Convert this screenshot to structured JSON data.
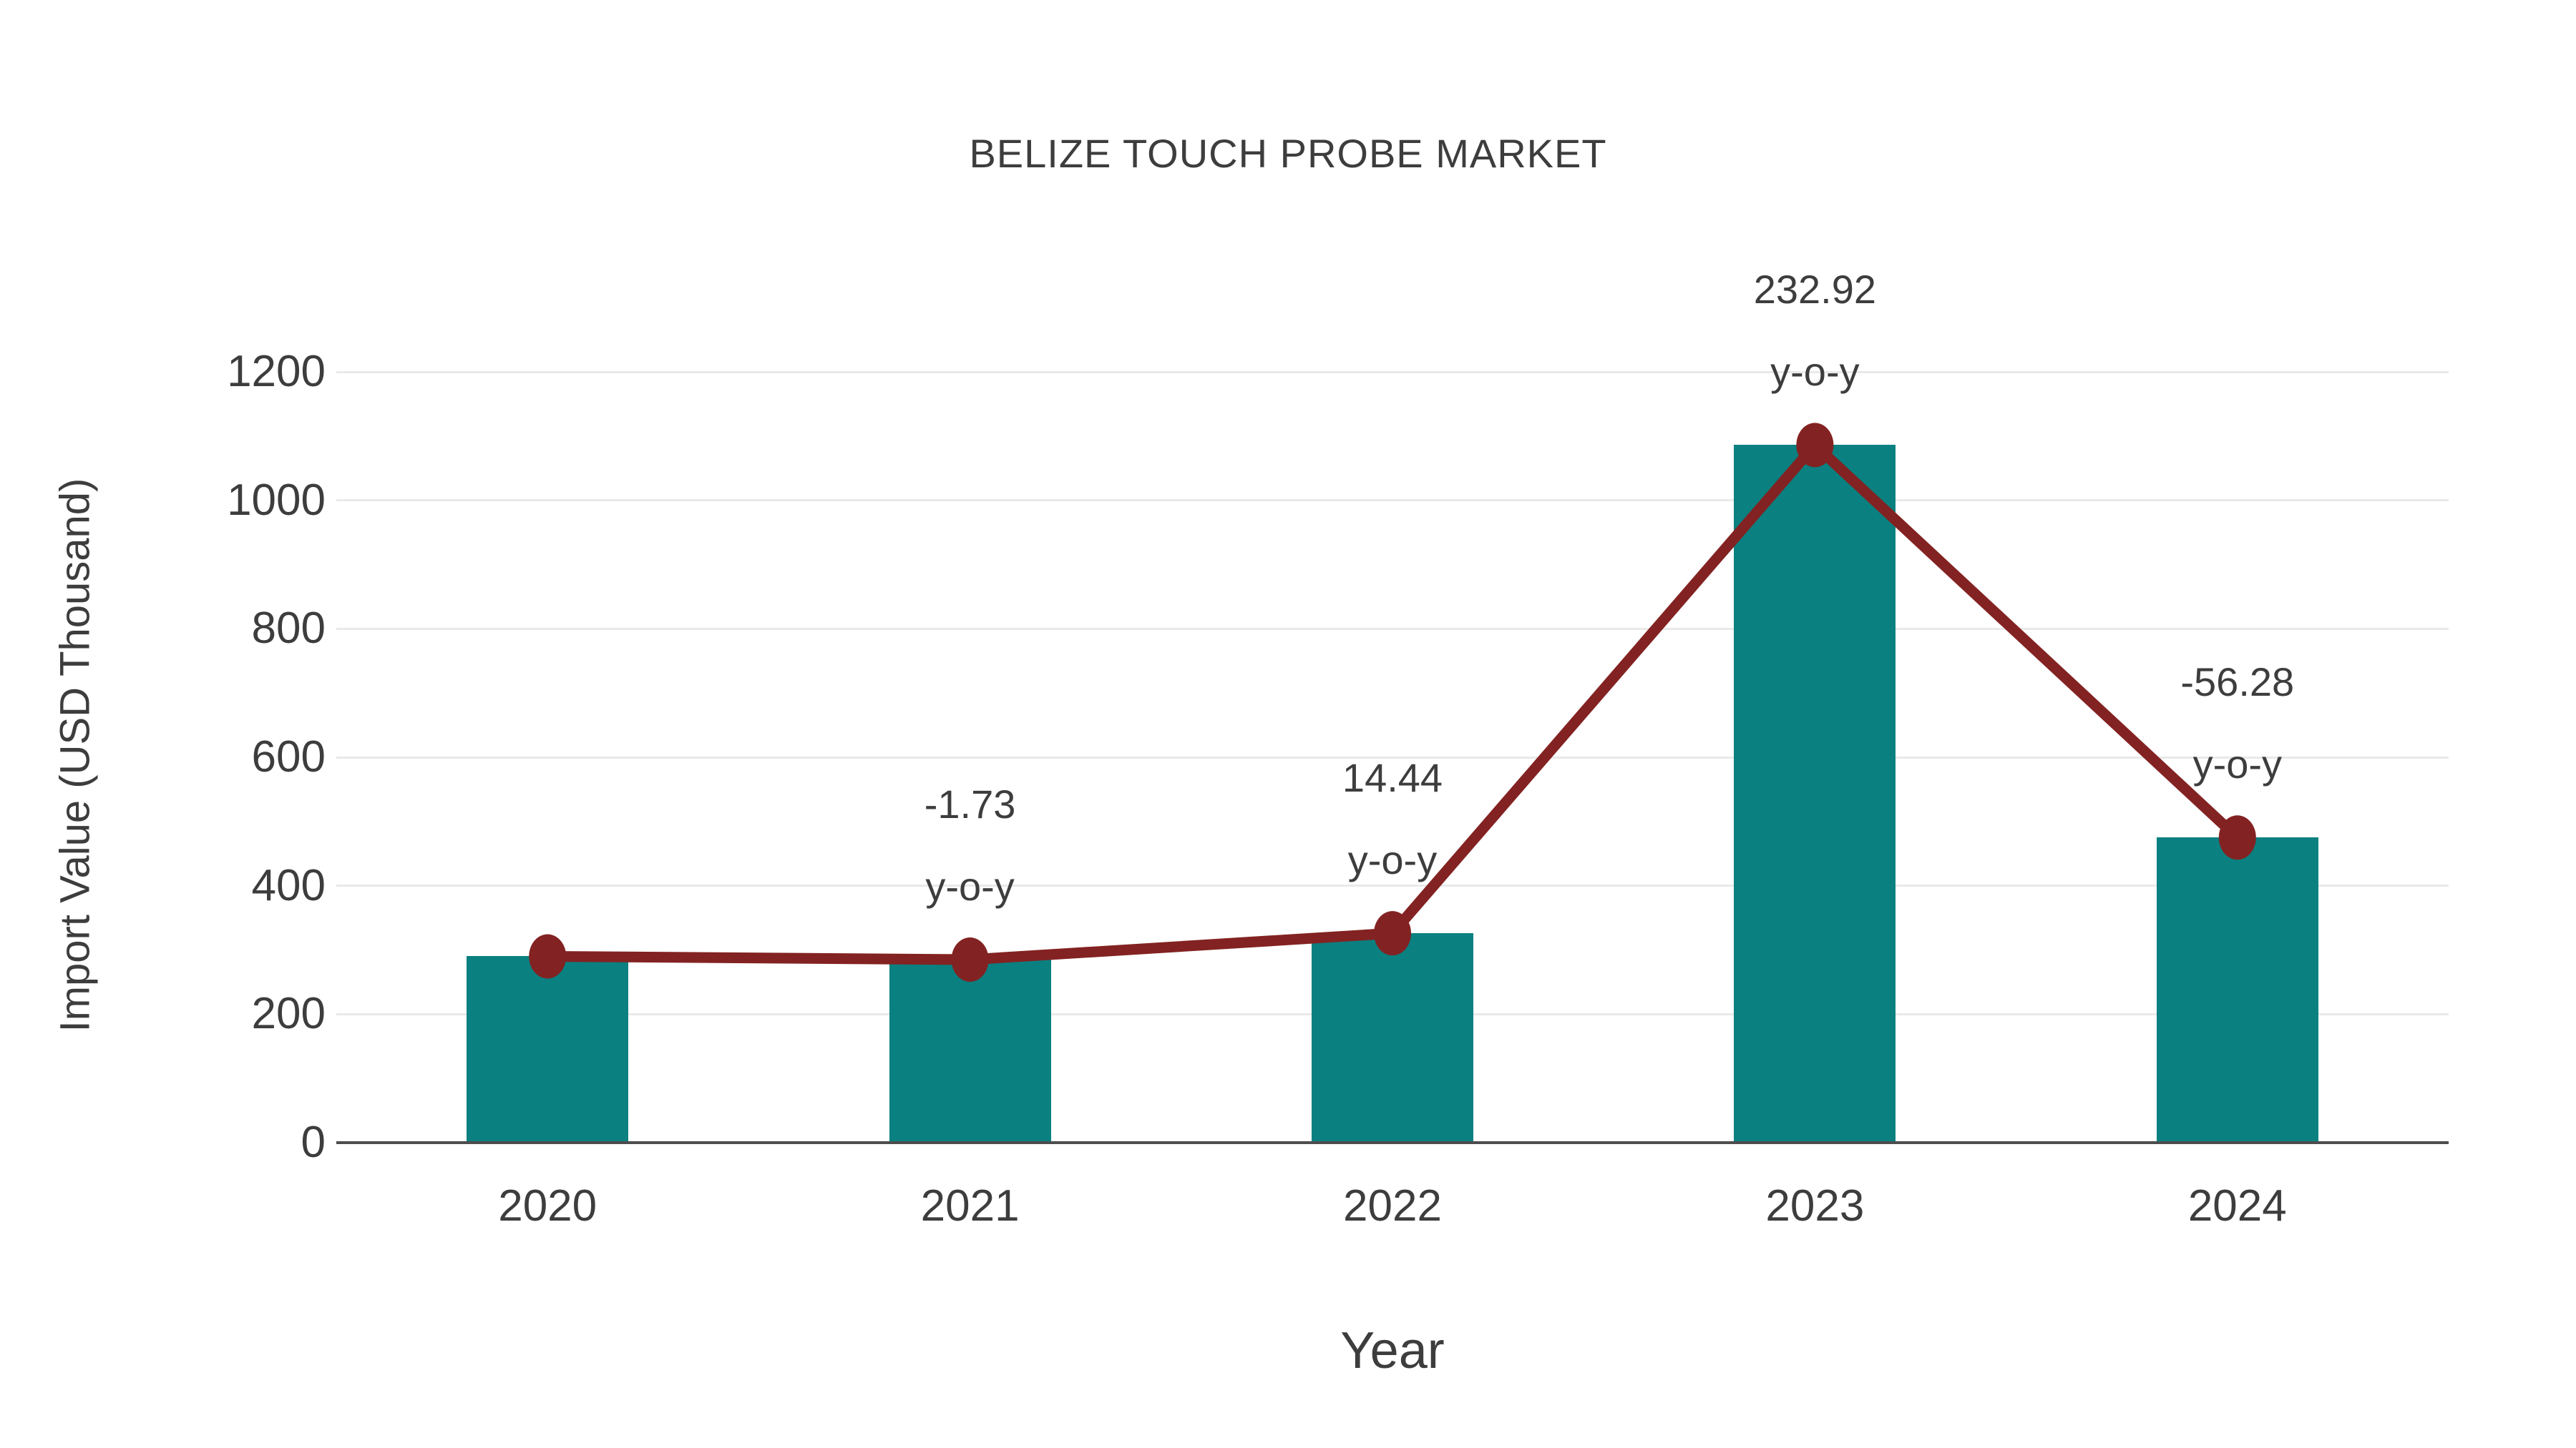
{
  "chart_data": {
    "type": "bar",
    "subtype": "bar-with-line-overlay",
    "title": "BELIZE TOUCH PROBE MARKET",
    "xlabel": "Year",
    "ylabel": "Import Value (USD Thousand)",
    "categories": [
      "2020",
      "2021",
      "2022",
      "2023",
      "2024"
    ],
    "series": [
      {
        "name": "Import Value bars",
        "type": "bar",
        "values": [
          290,
          285,
          326,
          1086,
          475
        ]
      },
      {
        "name": "Import Value trend",
        "type": "line",
        "values": [
          290,
          285,
          326,
          1086,
          475
        ]
      }
    ],
    "annotations": [
      {
        "category": "2021",
        "value_label": "-1.73",
        "sub_label": "y-o-y"
      },
      {
        "category": "2022",
        "value_label": "14.44",
        "sub_label": "y-o-y"
      },
      {
        "category": "2023",
        "value_label": "232.92",
        "sub_label": "y-o-y"
      },
      {
        "category": "2024",
        "value_label": "-56.28",
        "sub_label": "y-o-y"
      }
    ],
    "yticks": [
      "0",
      "200",
      "400",
      "600",
      "800",
      "1000",
      "1200"
    ],
    "ylim": [
      0,
      1200
    ],
    "grid": "horizontal",
    "legend_position": "none",
    "colors": {
      "bar": "#0a8080",
      "line": "#832222",
      "marker": "#832222",
      "grid": "#e9e9e9",
      "axis": "#4d4d4d",
      "text": "#3d3d3d"
    }
  }
}
